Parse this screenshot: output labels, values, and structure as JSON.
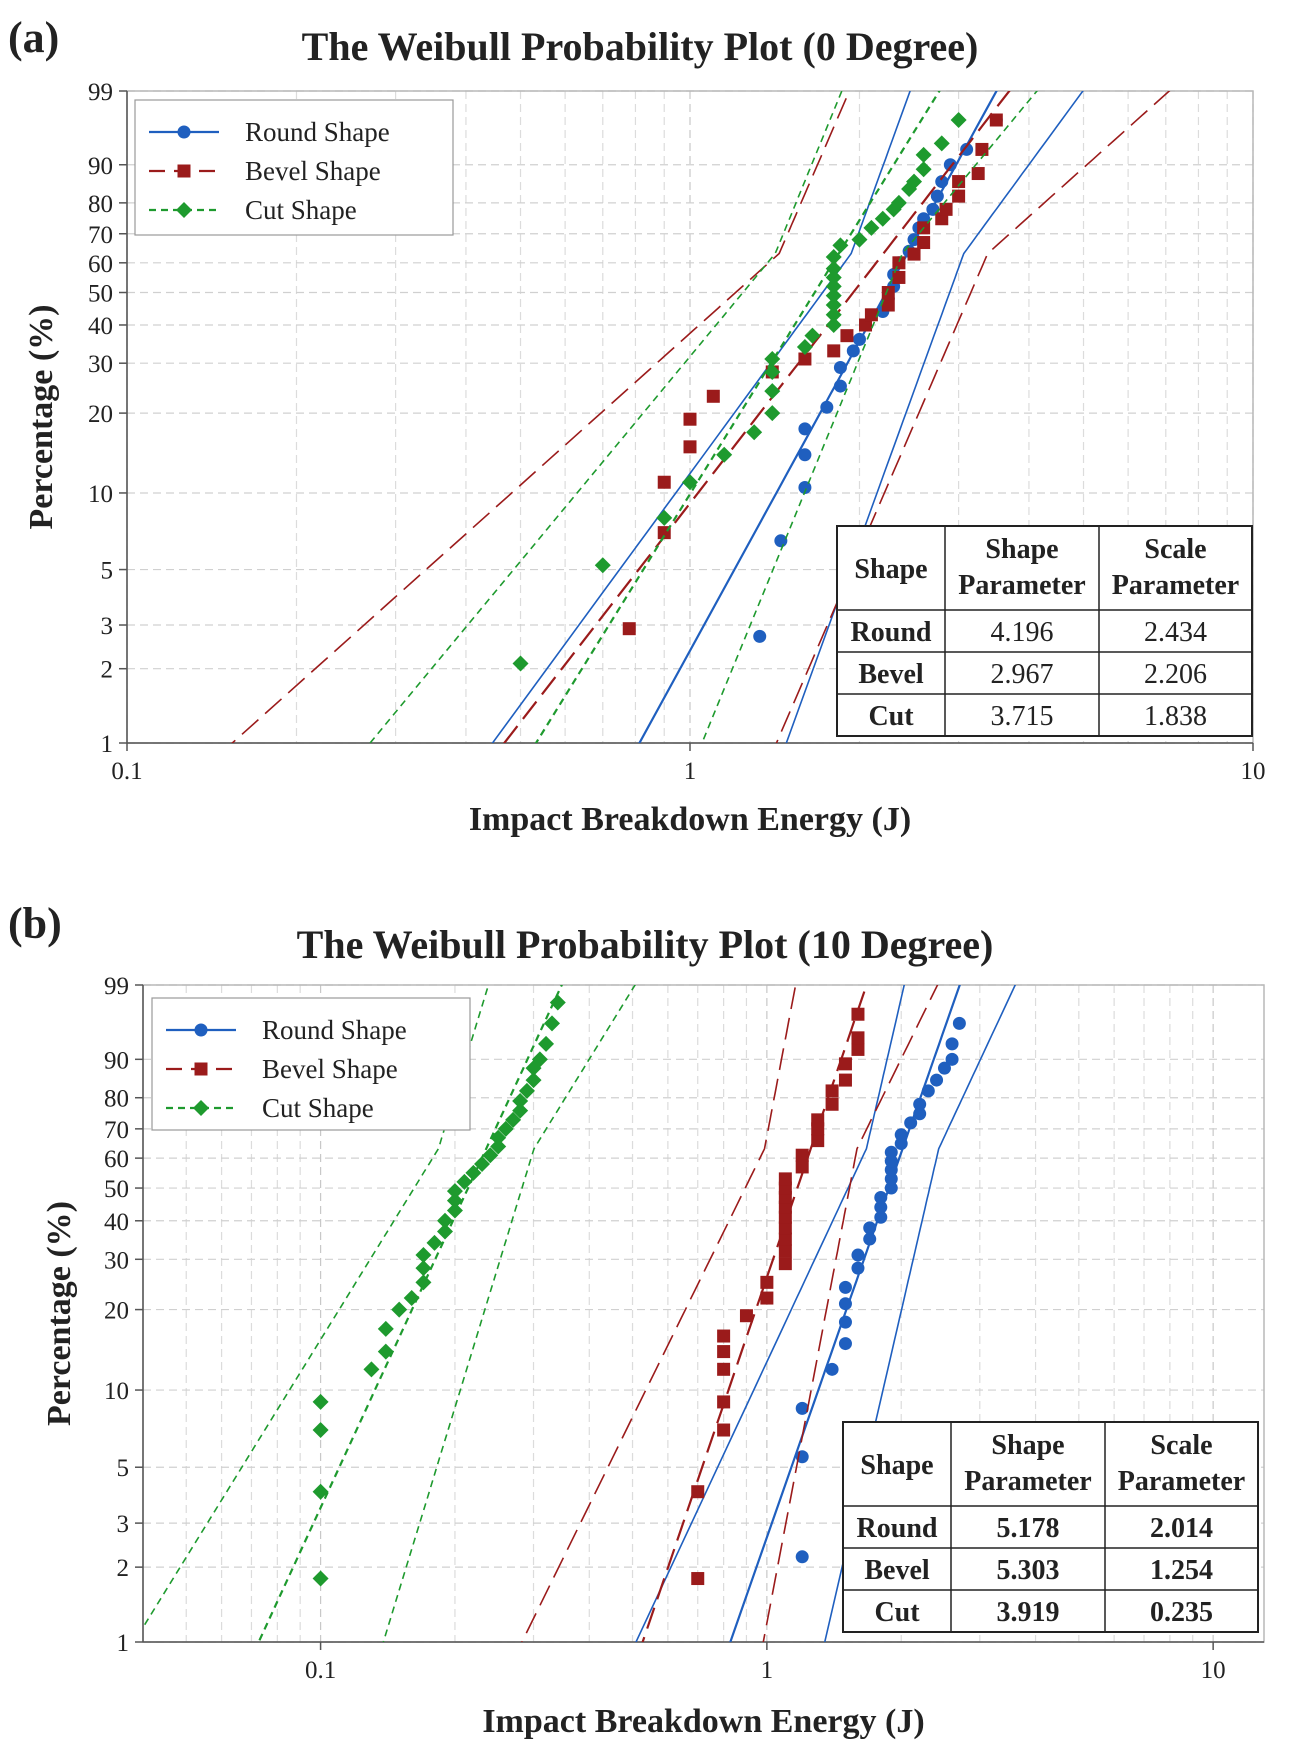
{
  "chart_data": [
    {
      "type": "scatter",
      "panel_label": "(a)",
      "title": "The Weibull Probability Plot (0 Degree)",
      "xlabel": "Impact Breakdown Energy (J)",
      "ylabel": "Percentage (%)",
      "x_scale": "log",
      "y_scale": "weibull",
      "xlim": [
        0.1,
        10
      ],
      "ylim": [
        1,
        99
      ],
      "x_ticks": [
        "0.1",
        "1",
        "10"
      ],
      "y_ticks": [
        "1",
        "2",
        "3",
        "5",
        "10",
        "20",
        "30",
        "40",
        "50",
        "60",
        "70",
        "80",
        "90",
        "99"
      ],
      "grid": true,
      "legend": {
        "position": "top-left",
        "entries": [
          "Round Shape",
          "Bevel Shape",
          "Cut Shape"
        ]
      },
      "colors": {
        "round": "#1f5fbf",
        "bevel": "#9b1b1b",
        "cut": "#1e9a2e"
      },
      "table": {
        "headers": [
          "Shape",
          "Shape Parameter",
          "Scale Parameter"
        ],
        "rows": [
          [
            "Round",
            "4.196",
            "2.434"
          ],
          [
            "Bevel",
            "2.967",
            "2.206"
          ],
          [
            "Cut",
            "3.715",
            "1.838"
          ]
        ],
        "bold_values": false
      },
      "series": [
        {
          "name": "Round Shape",
          "key": "round",
          "marker": "circle",
          "shape": 4.196,
          "scale": 2.434,
          "points": [
            [
              1.33,
              2.7
            ],
            [
              1.45,
              6.5
            ],
            [
              1.6,
              10.5
            ],
            [
              1.6,
              14
            ],
            [
              1.6,
              17.5
            ],
            [
              1.75,
              21
            ],
            [
              1.85,
              25
            ],
            [
              1.85,
              29
            ],
            [
              1.95,
              33
            ],
            [
              2.0,
              36
            ],
            [
              2.05,
              40
            ],
            [
              2.2,
              44
            ],
            [
              2.25,
              48
            ],
            [
              2.3,
              52
            ],
            [
              2.3,
              56
            ],
            [
              2.35,
              60
            ],
            [
              2.45,
              64
            ],
            [
              2.5,
              68
            ],
            [
              2.55,
              72
            ],
            [
              2.6,
              75
            ],
            [
              2.7,
              78
            ],
            [
              2.75,
              82
            ],
            [
              2.8,
              86
            ],
            [
              2.9,
              90
            ],
            [
              3.1,
              93
            ],
            [
              3.5,
              97
            ]
          ]
        },
        {
          "name": "Bevel Shape",
          "key": "bevel",
          "marker": "square",
          "shape": 2.967,
          "scale": 2.206,
          "points": [
            [
              0.78,
              2.9
            ],
            [
              0.9,
              7
            ],
            [
              0.9,
              11
            ],
            [
              1.0,
              15
            ],
            [
              1.0,
              19
            ],
            [
              1.1,
              23
            ],
            [
              1.4,
              28
            ],
            [
              1.6,
              31
            ],
            [
              1.8,
              33
            ],
            [
              1.9,
              37
            ],
            [
              2.05,
              40
            ],
            [
              2.1,
              43
            ],
            [
              2.25,
              46
            ],
            [
              2.25,
              50
            ],
            [
              2.35,
              55
            ],
            [
              2.35,
              60
            ],
            [
              2.5,
              63
            ],
            [
              2.6,
              67
            ],
            [
              2.6,
              72
            ],
            [
              2.8,
              75
            ],
            [
              2.85,
              78
            ],
            [
              3.0,
              82
            ],
            [
              3.0,
              86
            ],
            [
              3.25,
              88
            ],
            [
              3.3,
              93
            ],
            [
              3.5,
              97
            ]
          ]
        },
        {
          "name": "Cut Shape",
          "key": "cut",
          "marker": "diamond",
          "shape": 3.715,
          "scale": 1.838,
          "points": [
            [
              0.5,
              2.1
            ],
            [
              0.7,
              5.2
            ],
            [
              0.9,
              8
            ],
            [
              1.0,
              11
            ],
            [
              1.15,
              14
            ],
            [
              1.3,
              17
            ],
            [
              1.4,
              20
            ],
            [
              1.4,
              24
            ],
            [
              1.4,
              28
            ],
            [
              1.4,
              31
            ],
            [
              1.6,
              34
            ],
            [
              1.65,
              37
            ],
            [
              1.8,
              40
            ],
            [
              1.8,
              43
            ],
            [
              1.8,
              46
            ],
            [
              1.8,
              49
            ],
            [
              1.8,
              52
            ],
            [
              1.8,
              55
            ],
            [
              1.8,
              58
            ],
            [
              1.8,
              62
            ],
            [
              1.85,
              66
            ],
            [
              2.0,
              68
            ],
            [
              2.1,
              72
            ],
            [
              2.2,
              75
            ],
            [
              2.3,
              78
            ],
            [
              2.35,
              80
            ],
            [
              2.45,
              84
            ],
            [
              2.5,
              86
            ],
            [
              2.6,
              89
            ],
            [
              2.6,
              92
            ],
            [
              2.8,
              94
            ],
            [
              3.0,
              97
            ]
          ]
        }
      ]
    },
    {
      "type": "scatter",
      "panel_label": "(b)",
      "title": "The Weibull Probability Plot (10 Degree)",
      "xlabel": "Impact Breakdown Energy (J)",
      "ylabel": "Percentage (%)",
      "x_scale": "log",
      "y_scale": "weibull",
      "xlim": [
        0.04,
        13
      ],
      "ylim": [
        1,
        99
      ],
      "x_ticks": [
        "0.1",
        "1",
        "10"
      ],
      "y_ticks": [
        "1",
        "2",
        "3",
        "5",
        "10",
        "20",
        "30",
        "40",
        "50",
        "60",
        "70",
        "80",
        "90",
        "99"
      ],
      "grid": true,
      "legend": {
        "position": "top-left",
        "entries": [
          "Round Shape",
          "Bevel Shape",
          "Cut Shape"
        ]
      },
      "colors": {
        "round": "#1f5fbf",
        "bevel": "#9b1b1b",
        "cut": "#1e9a2e"
      },
      "table": {
        "headers": [
          "Shape",
          "Shape Parameter",
          "Scale Parameter"
        ],
        "rows": [
          [
            "Round",
            "5.178",
            "2.014"
          ],
          [
            "Bevel",
            "5.303",
            "1.254"
          ],
          [
            "Cut",
            "3.919",
            "0.235"
          ]
        ],
        "bold_values": true
      },
      "series": [
        {
          "name": "Round Shape",
          "key": "round",
          "marker": "circle",
          "shape": 5.178,
          "scale": 2.014,
          "points": [
            [
              1.2,
              2.2
            ],
            [
              1.2,
              5.5
            ],
            [
              1.2,
              8.5
            ],
            [
              1.4,
              12
            ],
            [
              1.5,
              15
            ],
            [
              1.5,
              18
            ],
            [
              1.5,
              21
            ],
            [
              1.5,
              24
            ],
            [
              1.6,
              28
            ],
            [
              1.6,
              31
            ],
            [
              1.7,
              35
            ],
            [
              1.7,
              38
            ],
            [
              1.8,
              41
            ],
            [
              1.8,
              44
            ],
            [
              1.8,
              47
            ],
            [
              1.9,
              50
            ],
            [
              1.9,
              53
            ],
            [
              1.9,
              56
            ],
            [
              1.9,
              59
            ],
            [
              1.9,
              62
            ],
            [
              2.0,
              65
            ],
            [
              2.0,
              68
            ],
            [
              2.1,
              72
            ],
            [
              2.2,
              75
            ],
            [
              2.2,
              78
            ],
            [
              2.3,
              82
            ],
            [
              2.4,
              85
            ],
            [
              2.5,
              88
            ],
            [
              2.6,
              90
            ],
            [
              2.6,
              93
            ],
            [
              2.7,
              96
            ]
          ]
        },
        {
          "name": "Bevel Shape",
          "key": "bevel",
          "marker": "square",
          "shape": 5.303,
          "scale": 1.254,
          "points": [
            [
              0.7,
              1.8
            ],
            [
              0.7,
              4
            ],
            [
              0.8,
              7
            ],
            [
              0.8,
              9
            ],
            [
              0.8,
              12
            ],
            [
              0.8,
              14
            ],
            [
              0.8,
              16
            ],
            [
              0.9,
              19
            ],
            [
              1.0,
              22
            ],
            [
              1.0,
              25
            ],
            [
              1.1,
              29
            ],
            [
              1.1,
              32
            ],
            [
              1.1,
              35
            ],
            [
              1.1,
              38
            ],
            [
              1.1,
              41
            ],
            [
              1.1,
              44
            ],
            [
              1.1,
              47
            ],
            [
              1.1,
              50
            ],
            [
              1.1,
              53
            ],
            [
              1.2,
              57
            ],
            [
              1.2,
              61
            ],
            [
              1.3,
              66
            ],
            [
              1.3,
              70
            ],
            [
              1.3,
              73
            ],
            [
              1.4,
              78
            ],
            [
              1.4,
              82
            ],
            [
              1.5,
              85
            ],
            [
              1.5,
              89
            ],
            [
              1.6,
              92
            ],
            [
              1.6,
              94
            ],
            [
              1.6,
              97
            ]
          ]
        },
        {
          "name": "Cut Shape",
          "key": "cut",
          "marker": "diamond",
          "shape": 3.919,
          "scale": 0.235,
          "points": [
            [
              0.1,
              1.8
            ],
            [
              0.1,
              4
            ],
            [
              0.1,
              7
            ],
            [
              0.1,
              9
            ],
            [
              0.13,
              12
            ],
            [
              0.14,
              14
            ],
            [
              0.14,
              17
            ],
            [
              0.15,
              20
            ],
            [
              0.16,
              22
            ],
            [
              0.17,
              25
            ],
            [
              0.17,
              28
            ],
            [
              0.17,
              31
            ],
            [
              0.18,
              34
            ],
            [
              0.19,
              37
            ],
            [
              0.19,
              40
            ],
            [
              0.2,
              43
            ],
            [
              0.2,
              46
            ],
            [
              0.2,
              49
            ],
            [
              0.21,
              52
            ],
            [
              0.22,
              55
            ],
            [
              0.23,
              58
            ],
            [
              0.24,
              61
            ],
            [
              0.25,
              64
            ],
            [
              0.25,
              67
            ],
            [
              0.26,
              70
            ],
            [
              0.27,
              73
            ],
            [
              0.28,
              76
            ],
            [
              0.28,
              79
            ],
            [
              0.29,
              82
            ],
            [
              0.3,
              85
            ],
            [
              0.3,
              88
            ],
            [
              0.31,
              90
            ],
            [
              0.32,
              93
            ],
            [
              0.33,
              96
            ],
            [
              0.34,
              98
            ]
          ]
        }
      ]
    }
  ]
}
